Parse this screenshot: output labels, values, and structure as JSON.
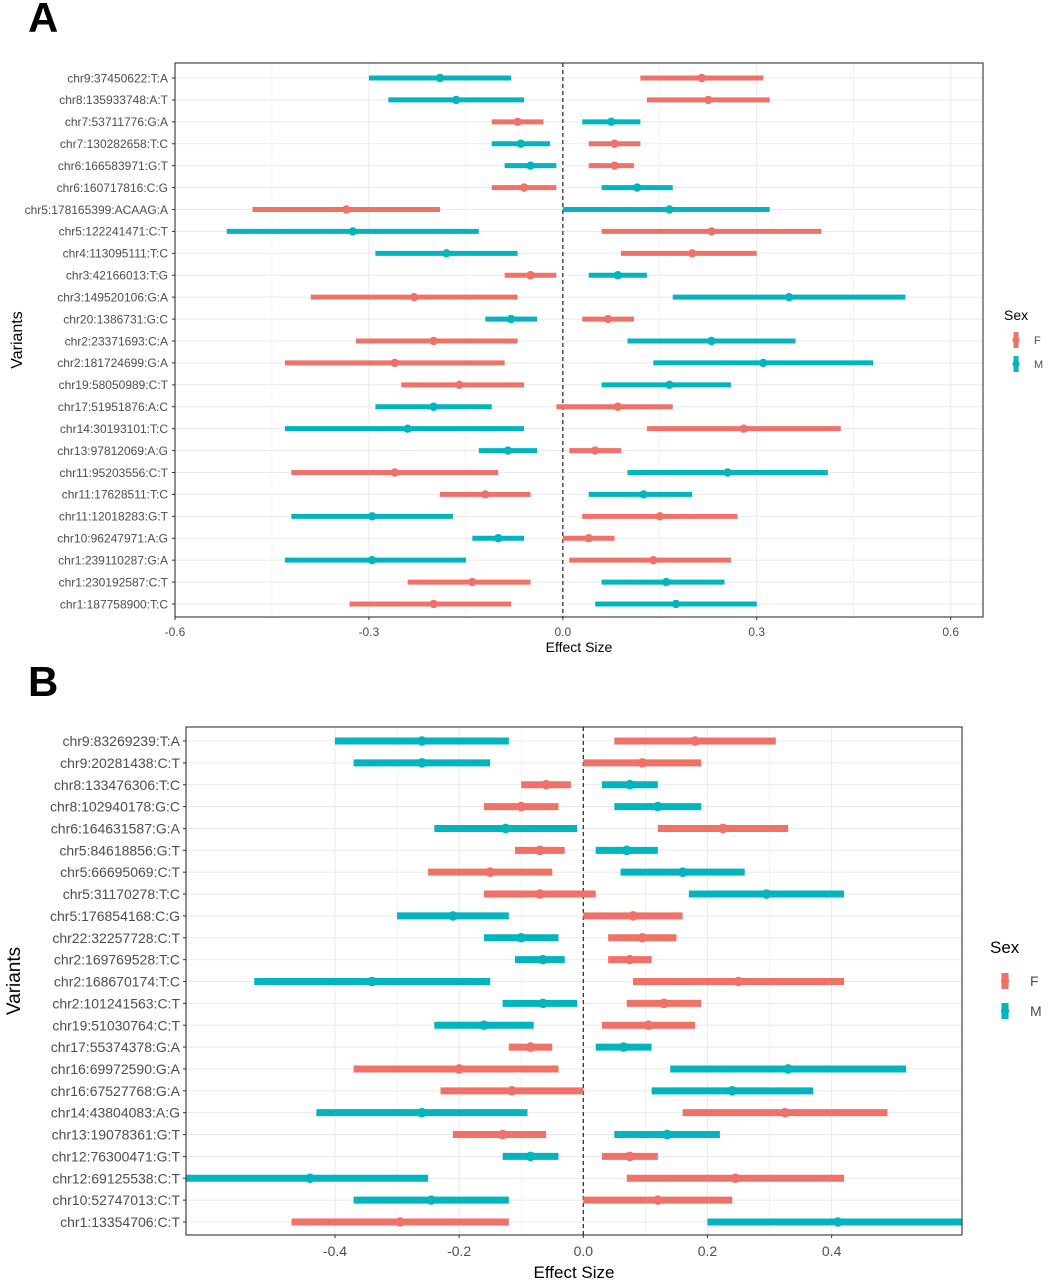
{
  "colors": {
    "F": "#F07167",
    "M": "#00B5BE",
    "grid": "#EBEBEB",
    "panel_border": "#333333",
    "ref_line": "#333333"
  },
  "legend": {
    "title": "Sex",
    "labels": [
      "F",
      "M"
    ]
  },
  "panels": {
    "A": {
      "label": "A"
    },
    "B": {
      "label": "B"
    }
  },
  "chart_data": [
    {
      "panel": "A",
      "type": "forest",
      "xlabel": "Effect Size",
      "ylabel": "Variants",
      "xlim": [
        -0.6,
        0.65
      ],
      "xticks": [
        -0.6,
        -0.3,
        0.0,
        0.3,
        0.6
      ],
      "xtick_labels": [
        "-0.6",
        "-0.3",
        "0.0",
        "0.3",
        "0.6"
      ],
      "reference_line": 0,
      "variants": [
        {
          "name": "chr9:37450622:T:A",
          "F": [
            0.215,
            0.12,
            0.31
          ],
          "M": [
            -0.19,
            -0.3,
            -0.08
          ]
        },
        {
          "name": "chr8:135933748:A:T",
          "F": [
            0.225,
            0.13,
            0.32
          ],
          "M": [
            -0.165,
            -0.27,
            -0.06
          ]
        },
        {
          "name": "chr7:53711776:G:A",
          "F": [
            -0.07,
            -0.11,
            -0.03
          ],
          "M": [
            0.075,
            0.03,
            0.12
          ]
        },
        {
          "name": "chr7:130282658:T:C",
          "F": [
            0.08,
            0.04,
            0.12
          ],
          "M": [
            -0.065,
            -0.11,
            -0.02
          ]
        },
        {
          "name": "chr6:166583971:G:T",
          "F": [
            0.08,
            0.04,
            0.11
          ],
          "M": [
            -0.05,
            -0.09,
            -0.01
          ]
        },
        {
          "name": "chr6:160717816:C:G",
          "F": [
            -0.06,
            -0.11,
            -0.01
          ],
          "M": [
            0.115,
            0.06,
            0.17
          ]
        },
        {
          "name": "chr5:178165399:ACAAG:A",
          "F": [
            -0.335,
            -0.48,
            -0.19
          ],
          "M": [
            0.165,
            0.0,
            0.32
          ]
        },
        {
          "name": "chr5:122241471:C:T",
          "F": [
            0.23,
            0.06,
            0.4
          ],
          "M": [
            -0.325,
            -0.52,
            -0.13
          ]
        },
        {
          "name": "chr4:113095111:T:C",
          "F": [
            0.2,
            0.09,
            0.3
          ],
          "M": [
            -0.18,
            -0.29,
            -0.07
          ]
        },
        {
          "name": "chr3:42166013:T:G",
          "F": [
            -0.05,
            -0.09,
            -0.01
          ],
          "M": [
            0.085,
            0.04,
            0.13
          ]
        },
        {
          "name": "chr3:149520106:G:A",
          "F": [
            -0.23,
            -0.39,
            -0.07
          ],
          "M": [
            0.35,
            0.17,
            0.53
          ]
        },
        {
          "name": "chr20:1386731:G:C",
          "F": [
            0.07,
            0.03,
            0.11
          ],
          "M": [
            -0.08,
            -0.12,
            -0.04
          ]
        },
        {
          "name": "chr2:23371693:C:A",
          "F": [
            -0.2,
            -0.32,
            -0.07
          ],
          "M": [
            0.23,
            0.1,
            0.36
          ]
        },
        {
          "name": "chr2:181724699:G:A",
          "F": [
            -0.26,
            -0.43,
            -0.09
          ],
          "M": [
            0.31,
            0.14,
            0.48
          ]
        },
        {
          "name": "chr19:58050989:C:T",
          "F": [
            -0.16,
            -0.25,
            -0.06
          ],
          "M": [
            0.165,
            0.06,
            0.26
          ]
        },
        {
          "name": "chr17:51951876:A:C",
          "F": [
            0.085,
            -0.01,
            0.17
          ],
          "M": [
            -0.2,
            -0.29,
            -0.11
          ]
        },
        {
          "name": "chr14:30193101:T:C",
          "F": [
            0.28,
            0.13,
            0.43
          ],
          "M": [
            -0.24,
            -0.43,
            -0.06
          ]
        },
        {
          "name": "chr13:97812069:A:G",
          "F": [
            0.05,
            0.01,
            0.09
          ],
          "M": [
            -0.085,
            -0.13,
            -0.04
          ]
        },
        {
          "name": "chr11:95203556:C:T",
          "F": [
            -0.26,
            -0.42,
            -0.1
          ],
          "M": [
            0.255,
            0.1,
            0.41
          ]
        },
        {
          "name": "chr11:17628511:T:C",
          "F": [
            -0.12,
            -0.19,
            -0.05
          ],
          "M": [
            0.125,
            0.04,
            0.2
          ]
        },
        {
          "name": "chr11:12018283:G:T",
          "F": [
            0.15,
            0.03,
            0.27
          ],
          "M": [
            -0.295,
            -0.42,
            -0.17
          ]
        },
        {
          "name": "chr10:96247971:A:G",
          "F": [
            0.04,
            0.0,
            0.08
          ],
          "M": [
            -0.1,
            -0.14,
            -0.06
          ]
        },
        {
          "name": "chr1:239110287:G:A",
          "F": [
            0.14,
            0.01,
            0.26
          ],
          "M": [
            -0.295,
            -0.43,
            -0.15
          ]
        },
        {
          "name": "chr1:230192587:C:T",
          "F": [
            -0.14,
            -0.24,
            -0.05
          ],
          "M": [
            0.16,
            0.06,
            0.25
          ]
        },
        {
          "name": "chr1:187758900:T:C",
          "F": [
            -0.2,
            -0.33,
            -0.08
          ],
          "M": [
            0.175,
            0.05,
            0.3
          ]
        }
      ]
    },
    {
      "panel": "B",
      "type": "forest",
      "xlabel": "Effect Size",
      "ylabel": "Variants",
      "xlim": [
        -0.64,
        0.61
      ],
      "xticks": [
        -0.4,
        -0.2,
        0.0,
        0.2,
        0.4
      ],
      "xtick_labels": [
        "-0.4",
        "-0.2",
        "0.0",
        "0.2",
        "0.4"
      ],
      "reference_line": 0,
      "variants": [
        {
          "name": "chr9:83269239:T:A",
          "F": [
            0.18,
            0.05,
            0.31
          ],
          "M": [
            -0.26,
            -0.4,
            -0.12
          ]
        },
        {
          "name": "chr9:20281438:C:T",
          "F": [
            0.095,
            0.0,
            0.19
          ],
          "M": [
            -0.26,
            -0.37,
            -0.15
          ]
        },
        {
          "name": "chr8:133476306:T:C",
          "F": [
            -0.06,
            -0.1,
            -0.02
          ],
          "M": [
            0.075,
            0.03,
            0.12
          ]
        },
        {
          "name": "chr8:102940178:G:C",
          "F": [
            -0.1,
            -0.16,
            -0.04
          ],
          "M": [
            0.12,
            0.05,
            0.19
          ]
        },
        {
          "name": "chr6:164631587:G:A",
          "F": [
            0.225,
            0.12,
            0.33
          ],
          "M": [
            -0.125,
            -0.24,
            -0.01
          ]
        },
        {
          "name": "chr5:84618856:G:T",
          "F": [
            -0.07,
            -0.11,
            -0.03
          ],
          "M": [
            0.07,
            0.02,
            0.12
          ]
        },
        {
          "name": "chr5:66695069:C:T",
          "F": [
            -0.15,
            -0.25,
            -0.05
          ],
          "M": [
            0.16,
            0.06,
            0.26
          ]
        },
        {
          "name": "chr5:31170278:T:C",
          "F": [
            -0.07,
            -0.16,
            0.02
          ],
          "M": [
            0.295,
            0.17,
            0.42
          ]
        },
        {
          "name": "chr5:176854168:C:G",
          "F": [
            0.08,
            0.0,
            0.16
          ],
          "M": [
            -0.21,
            -0.3,
            -0.12
          ]
        },
        {
          "name": "chr22:32257728:C:T",
          "F": [
            0.095,
            0.04,
            0.15
          ],
          "M": [
            -0.1,
            -0.16,
            -0.04
          ]
        },
        {
          "name": "chr2:169769528:T:C",
          "F": [
            0.075,
            0.04,
            0.11
          ],
          "M": [
            -0.065,
            -0.11,
            -0.03
          ]
        },
        {
          "name": "chr2:168670174:T:C",
          "F": [
            0.25,
            0.08,
            0.42
          ],
          "M": [
            -0.34,
            -0.53,
            -0.15
          ]
        },
        {
          "name": "chr2:101241563:C:T",
          "F": [
            0.13,
            0.07,
            0.19
          ],
          "M": [
            -0.065,
            -0.13,
            -0.01
          ]
        },
        {
          "name": "chr19:51030764:C:T",
          "F": [
            0.105,
            0.03,
            0.18
          ],
          "M": [
            -0.16,
            -0.24,
            -0.08
          ]
        },
        {
          "name": "chr17:55374378:G:A",
          "F": [
            -0.085,
            -0.12,
            -0.05
          ],
          "M": [
            0.065,
            0.02,
            0.11
          ]
        },
        {
          "name": "chr16:69972590:G:A",
          "F": [
            -0.2,
            -0.37,
            -0.04
          ],
          "M": [
            0.33,
            0.14,
            0.52
          ]
        },
        {
          "name": "chr16:67527768:G:A",
          "F": [
            -0.115,
            -0.23,
            0.0
          ],
          "M": [
            0.24,
            0.11,
            0.37
          ]
        },
        {
          "name": "chr14:43804083:A:G",
          "F": [
            0.325,
            0.16,
            0.49
          ],
          "M": [
            -0.26,
            -0.43,
            -0.09
          ]
        },
        {
          "name": "chr13:19078361:G:T",
          "F": [
            -0.13,
            -0.21,
            -0.06
          ],
          "M": [
            0.135,
            0.05,
            0.22
          ]
        },
        {
          "name": "chr12:76300471:G:T",
          "F": [
            0.075,
            0.03,
            0.12
          ],
          "M": [
            -0.085,
            -0.13,
            -0.04
          ]
        },
        {
          "name": "chr12:69125538:C:T",
          "F": [
            0.245,
            0.07,
            0.42
          ],
          "M": [
            -0.44,
            -0.64,
            -0.25
          ]
        },
        {
          "name": "chr10:52747013:C:T",
          "F": [
            0.12,
            0.0,
            0.24
          ],
          "M": [
            -0.245,
            -0.37,
            -0.12
          ]
        },
        {
          "name": "chr1:13354706:C:T",
          "F": [
            -0.295,
            -0.47,
            -0.12
          ],
          "M": [
            0.41,
            0.2,
            0.61
          ]
        }
      ]
    }
  ]
}
